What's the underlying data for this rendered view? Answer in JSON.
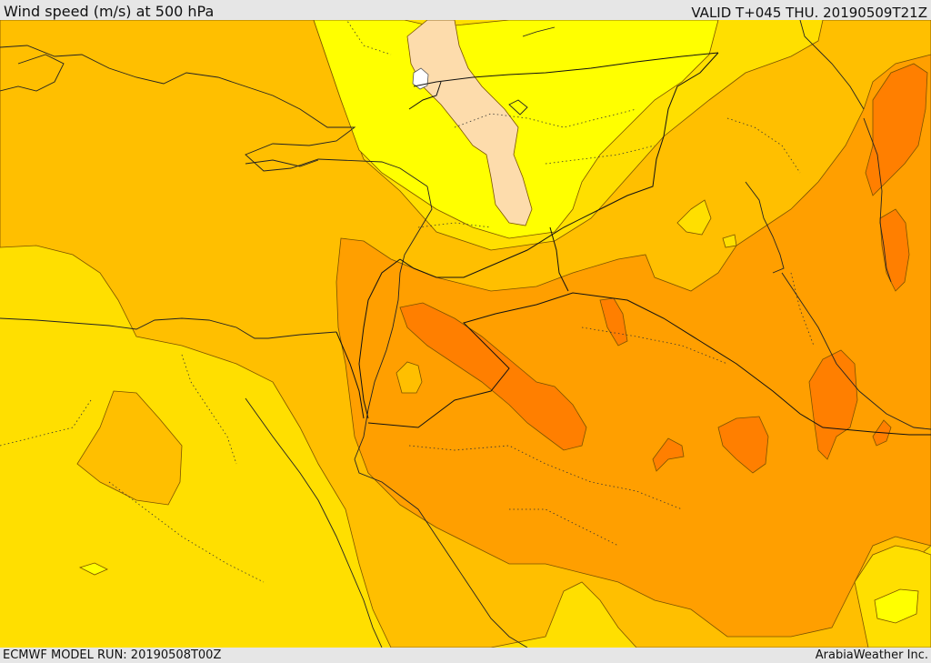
{
  "header": {
    "title": "Wind speed (m/s) at 500 hPa",
    "valid": "VALID T+045 THU. 20190509T21Z"
  },
  "footer": {
    "model_run": "ECMWF MODEL RUN: 20190508T00Z",
    "credit": "ArabiaWeather Inc."
  },
  "map": {
    "variable": "wind speed",
    "level": "500 hPa",
    "fill_colors": {
      "lightest": "#ffff00",
      "light": "#ffdf00",
      "medium": "#ffbf00",
      "strong": "#ff9f00",
      "strongest": "#ff7f00",
      "pale_core": "#fddcac",
      "white_core": "#ffffff"
    },
    "line_colors": {
      "coast": "#222222",
      "border": "#111111",
      "contour": "#7a5200"
    }
  }
}
